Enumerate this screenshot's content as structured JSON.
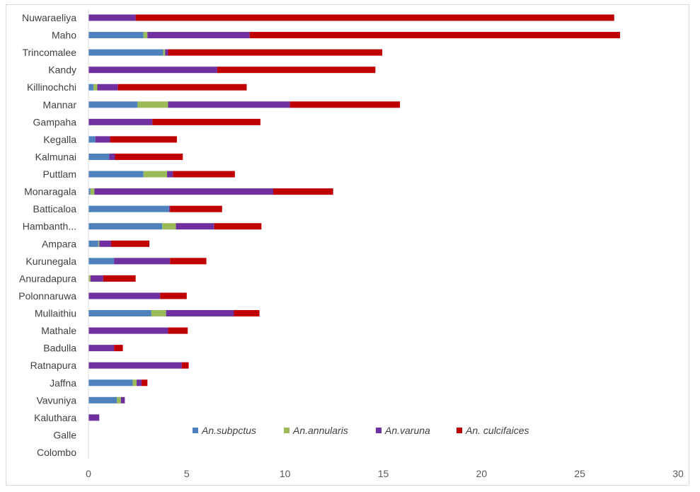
{
  "chart_data": {
    "type": "bar",
    "orientation": "horizontal",
    "stacked": true,
    "categories": [
      "Nuwaraeliya",
      "Maho",
      "Trincomalee",
      "Kandy",
      "Killinochchi",
      "Mannar",
      "Gampaha",
      "Kegalla",
      "Kalmunai",
      "Puttlam",
      "Monaragala",
      "Batticaloa",
      "Hambanth...",
      "Ampara",
      "Kurunegala",
      "Anuradapura",
      "Polonnaruwa",
      "Mullaithiu",
      "Mathale",
      "Badulla",
      "Ratnapura",
      "Jaffna",
      "Vavuniya",
      "Kaluthara",
      "Galle",
      "Colombo"
    ],
    "series": [
      {
        "name": "An.subpctus",
        "color": "#4f81bd",
        "values": [
          0,
          2.8,
          3.8,
          0,
          0.25,
          2.5,
          0,
          0.35,
          1.05,
          2.8,
          0.1,
          4.1,
          3.75,
          0.5,
          1.3,
          0,
          0,
          3.2,
          0,
          0,
          0,
          2.25,
          1.45,
          0,
          0,
          0
        ]
      },
      {
        "name": "An.annularis",
        "color": "#9bbb59",
        "values": [
          0,
          0.2,
          0.1,
          0,
          0.2,
          1.55,
          0,
          0,
          0,
          1.2,
          0.2,
          0,
          0.7,
          0.05,
          0,
          0.1,
          0,
          0.75,
          0,
          0,
          0,
          0.2,
          0.2,
          0,
          0,
          0
        ]
      },
      {
        "name": "An.varuna",
        "color": "#7030a0",
        "values": [
          2.4,
          5.2,
          0.15,
          6.55,
          1.05,
          6.2,
          3.25,
          0.75,
          0.3,
          0.3,
          9.1,
          0.05,
          1.95,
          0.6,
          2.85,
          0.65,
          3.65,
          3.45,
          4.05,
          1.3,
          4.75,
          0.25,
          0.2,
          0.55,
          0,
          0
        ]
      },
      {
        "name": "An. culcifaices",
        "color": "#c00000",
        "values": [
          24.35,
          18.85,
          10.9,
          8.05,
          6.55,
          5.6,
          5.5,
          3.4,
          3.45,
          3.15,
          3.05,
          2.65,
          2.4,
          1.95,
          1.85,
          1.65,
          1.35,
          1.3,
          1.0,
          0.45,
          0.35,
          0.3,
          0,
          0,
          0,
          0
        ]
      }
    ],
    "xlim": [
      0,
      30
    ],
    "xticks": [
      "0",
      "5",
      "10",
      "15",
      "20",
      "25",
      "30"
    ],
    "grid": false,
    "legend_position": "inside-bottom"
  }
}
